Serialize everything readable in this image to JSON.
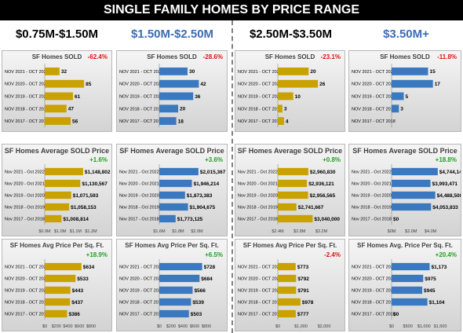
{
  "title": "SINGLE FAMILY HOMES BY PRICE RANGE",
  "colors": {
    "gold": "#C9A100",
    "blue": "#3A78C0",
    "up": "#22A022",
    "down": "#E01010"
  },
  "columns": [
    {
      "label": "$0.75M-$1.50M",
      "color": "#000000"
    },
    {
      "label": "$1.50M-$2.50M",
      "color": "#3A6DB5"
    },
    {
      "label": "$2.50M-$3.50M",
      "color": "#000000"
    },
    {
      "label": "$3.50M+",
      "color": "#3A6DB5"
    }
  ],
  "chart_data": [
    {
      "type": "bar",
      "title": "SF Homes SOLD",
      "change": "-62.4%",
      "direction": "down",
      "bar_color": "#C9A100",
      "categories": [
        "NOV 2021 - OCT 2022",
        "NOV 2020 - OCT 2021",
        "NOV 2019 - OCT 2020",
        "NOV 2018 - OCT 2019",
        "NOV 2017 - OCT 2018"
      ],
      "values": [
        32,
        85,
        61,
        47,
        56
      ],
      "labels": [
        "32",
        "85",
        "61",
        "47",
        "56"
      ],
      "xlim": [
        0,
        100
      ],
      "ticks": []
    },
    {
      "type": "bar",
      "title": "SF Homes SOLD",
      "change": "-28.6%",
      "direction": "down",
      "bar_color": "#3A78C0",
      "categories": [
        "NOV 2021 - OCT 2022",
        "NOV 2020 - OCT 2021",
        "NOV 2019 - OCT 2020",
        "NOV 2018 - OCT 2019",
        "NOV 2017 - OCT 2018"
      ],
      "values": [
        30,
        42,
        36,
        20,
        18
      ],
      "labels": [
        "30",
        "42",
        "36",
        "20",
        "18"
      ],
      "xlim": [
        0,
        50
      ],
      "ticks": []
    },
    {
      "type": "bar",
      "title": "SF Homes SOLD",
      "change": "-23.1%",
      "direction": "down",
      "bar_color": "#C9A100",
      "categories": [
        "NOV 2021 - OCT 2022",
        "NOV 2020 - OCT 2021",
        "NOV 2019 - OCT 2020",
        "NOV 2018 - OCT 2019",
        "NOV 2017 - OCT 2018"
      ],
      "values": [
        20,
        26,
        10,
        3,
        4
      ],
      "labels": [
        "20",
        "26",
        "10",
        "3",
        "4"
      ],
      "xlim": [
        0,
        30
      ],
      "ticks": []
    },
    {
      "type": "bar",
      "title": "SF Homes SOLD",
      "change": "-11.8%",
      "direction": "down",
      "bar_color": "#3A78C0",
      "categories": [
        "NOV 2021 - OCT 2022",
        "NOV 2020 - OCT 2021",
        "NOV 2019 - OCT 2020",
        "NOV 2018 - OCT 2019",
        "NOV 2017 - OCT 2018"
      ],
      "values": [
        15,
        17,
        5,
        3,
        0
      ],
      "labels": [
        "15",
        "17",
        "5",
        "3",
        ""
      ],
      "xlim": [
        0,
        20
      ],
      "ticks": []
    },
    {
      "type": "bar",
      "title": "SF Homes Average SOLD Price",
      "change": "+1.6%",
      "direction": "up",
      "bar_color": "#C9A100",
      "categories": [
        "Nov 2021 - Oct 2022",
        "Nov 2020 - Oct 2021",
        "Nov 2019 - Oct 2020",
        "Nov 2018 - Oct 2019",
        "Nov 2017 - Oct 2018"
      ],
      "values": [
        1148802,
        1130567,
        1071593,
        1058153,
        1008814
      ],
      "labels": [
        "$1,148,802",
        "$1,130,567",
        "$1,071,593",
        "$1,058,153",
        "$1,008,814"
      ],
      "xlim": [
        900000,
        1200000
      ],
      "ticks": [
        {
          "v": 900000,
          "t": "$0.9M"
        },
        {
          "v": 1000000,
          "t": "$1.0M"
        },
        {
          "v": 1100000,
          "t": "$1.1M"
        },
        {
          "v": 1200000,
          "t": "$1.2M"
        }
      ]
    },
    {
      "type": "bar",
      "title": "SF Homes Average SOLD Price",
      "change": "+3.6%",
      "direction": "up",
      "bar_color": "#3A78C0",
      "categories": [
        "Nov 2021 - Oct 2022",
        "Nov 2020 - Oct 2021",
        "Nov 2019 - Oct 2020",
        "Nov 2018 - Oct 2019",
        "Nov 2017 - Oct 2018"
      ],
      "values": [
        2015367,
        1946214,
        1873383,
        1904675,
        1773125
      ],
      "labels": [
        "$2,015,367",
        "$1,946,214",
        "$1,873,383",
        "$1,904,675",
        "$1,773,125"
      ],
      "xlim": [
        1600000,
        2100000
      ],
      "ticks": [
        {
          "v": 1600000,
          "t": "$1.6M"
        },
        {
          "v": 1800000,
          "t": "$1.8M"
        },
        {
          "v": 2000000,
          "t": "$2.0M"
        }
      ]
    },
    {
      "type": "bar",
      "title": "SF Homes Average SOLD Price",
      "change": "+0.8%",
      "direction": "up",
      "bar_color": "#C9A100",
      "categories": [
        "Nov 2021 - Oct 2022",
        "Nov 2020 - Oct 2021",
        "Nov 2019 - Oct 2020",
        "Nov 2018 - Oct 2019",
        "Nov 2017 - Oct 2018"
      ],
      "values": [
        2960830,
        2936121,
        2956565,
        2741667,
        3040000
      ],
      "labels": [
        "$2,960,830",
        "$2,936,121",
        "$2,956,565",
        "$2,741,667",
        "$3,040,000"
      ],
      "xlim": [
        2400000,
        3250000
      ],
      "ticks": [
        {
          "v": 2400000,
          "t": "$2.4M"
        },
        {
          "v": 2800000,
          "t": "$2.8M"
        },
        {
          "v": 3200000,
          "t": "$3.2M"
        }
      ]
    },
    {
      "type": "bar",
      "title": "SF Homes Average SOLD Price",
      "change": "+18.8%",
      "direction": "up",
      "bar_color": "#3A78C0",
      "categories": [
        "Nov 2021 - Oct 2022",
        "Nov 2020 - Oct 2021",
        "Nov 2019 - Oct 2020",
        "Nov 2018 - Oct 2019",
        "Nov 2017 - Oct 2018"
      ],
      "values": [
        4744147,
        3993471,
        4488500,
        4053833,
        0
      ],
      "labels": [
        "$4,744,147",
        "$3,993,471",
        "$4,488,500",
        "$4,053,833",
        "$0"
      ],
      "xlim": [
        0,
        5000000
      ],
      "ticks": [
        {
          "v": 0,
          "t": "$0M"
        },
        {
          "v": 2000000,
          "t": "$2.0M"
        },
        {
          "v": 4000000,
          "t": "$4.0M"
        }
      ]
    },
    {
      "type": "bar",
      "title": "SF Homes Avg Price Per Sq. Ft.",
      "change": "+18.9%",
      "direction": "up",
      "bar_color": "#C9A100",
      "categories": [
        "NOV 2021 - OCT 2022",
        "NOV 2020 - OCT 2021",
        "NOV 2019 - OCT 2020",
        "NOV 2018 - OCT 2019",
        "NOV 2017 - OCT 2018"
      ],
      "values": [
        634,
        533,
        443,
        437,
        386
      ],
      "labels": [
        "$634",
        "$533",
        "$443",
        "$437",
        "$386"
      ],
      "xlim": [
        0,
        800
      ],
      "ticks": [
        {
          "v": 0,
          "t": "$0"
        },
        {
          "v": 200,
          "t": "$200"
        },
        {
          "v": 400,
          "t": "$400"
        },
        {
          "v": 600,
          "t": "$600"
        },
        {
          "v": 800,
          "t": "$800"
        }
      ]
    },
    {
      "type": "bar",
      "title": "SF Homes Avg Price Per Sq. Ft.",
      "change": "+6.5%",
      "direction": "up",
      "bar_color": "#3A78C0",
      "categories": [
        "NOV 2021 - OCT 2022",
        "NOV 2020 - OCT 2021",
        "NOV 2019 - OCT 2020",
        "NOV 2018 - OCT 2019",
        "NOV 2017 - OCT 2018"
      ],
      "values": [
        728,
        684,
        566,
        539,
        503
      ],
      "labels": [
        "$728",
        "$684",
        "$566",
        "$539",
        "$503"
      ],
      "xlim": [
        0,
        800
      ],
      "ticks": [
        {
          "v": 0,
          "t": "$0"
        },
        {
          "v": 200,
          "t": "$200"
        },
        {
          "v": 400,
          "t": "$400"
        },
        {
          "v": 600,
          "t": "$600"
        },
        {
          "v": 800,
          "t": "$800"
        }
      ]
    },
    {
      "type": "bar",
      "title": "SF Homes Avg Price Per Sq. Ft.",
      "change": "-2.4%",
      "direction": "down",
      "bar_color": "#C9A100",
      "categories": [
        "NOV 2021 - OCT 2022",
        "NOV 2020 - OCT 2021",
        "NOV 2019 - OCT 2020",
        "NOV 2018 - OCT 2019",
        "NOV 2017 - OCT 2018"
      ],
      "values": [
        773,
        792,
        791,
        978,
        777
      ],
      "labels": [
        "$773",
        "$792",
        "$791",
        "$978",
        "$777"
      ],
      "xlim": [
        0,
        2000
      ],
      "ticks": [
        {
          "v": 0,
          "t": "$0"
        },
        {
          "v": 1000,
          "t": "$1,000"
        },
        {
          "v": 2000,
          "t": "$2,000"
        }
      ]
    },
    {
      "type": "bar",
      "title": "SF Homes Avg. Price Per Sq. Ft.",
      "change": "+20.4%",
      "direction": "up",
      "bar_color": "#3A78C0",
      "categories": [
        "NOV 2021 - OCT 2022",
        "NOV 2020 - OCT 2021",
        "NOV 2019 - OCT 2020",
        "NOV 2018 - OCT 2019",
        "NOV 2017 - OCT 2018"
      ],
      "values": [
        1173,
        975,
        945,
        1104,
        0
      ],
      "labels": [
        "$1,173",
        "$975",
        "$945",
        "$1,104",
        "$0"
      ],
      "xlim": [
        0,
        1500
      ],
      "ticks": [
        {
          "v": 0,
          "t": "$0"
        },
        {
          "v": 500,
          "t": "$500"
        },
        {
          "v": 1000,
          "t": "$1,000"
        },
        {
          "v": 1500,
          "t": "$1,500"
        }
      ]
    }
  ]
}
